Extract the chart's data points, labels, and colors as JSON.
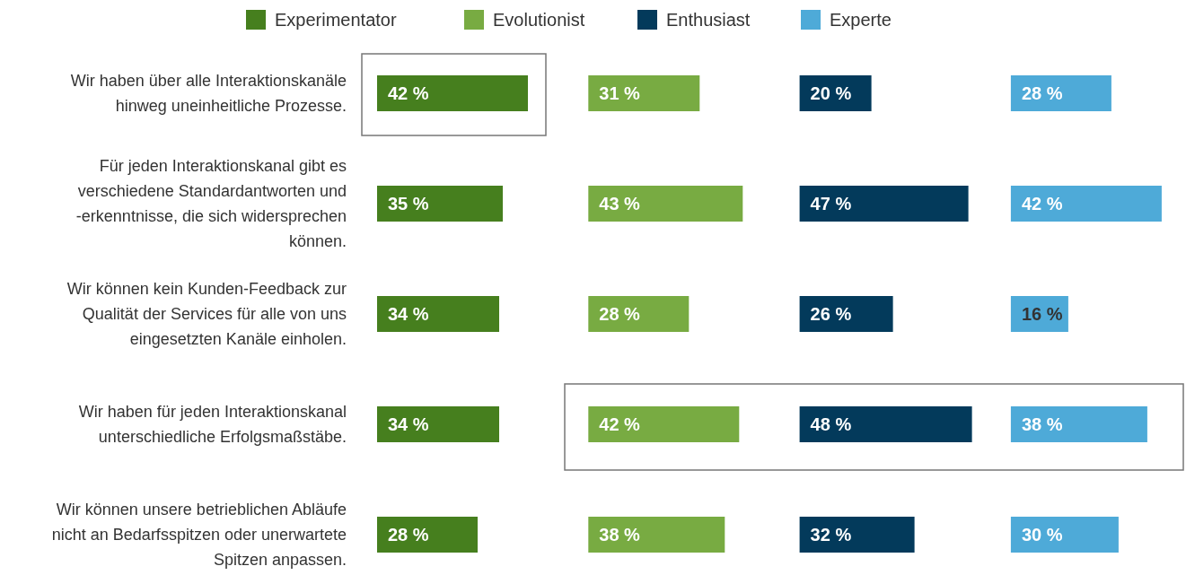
{
  "chart_data": [
    {
      "type": "bar",
      "orientation": "horizontal",
      "legend": "top",
      "categories": [
        "Wir haben über alle Interaktionskanäle hinweg uneinheitliche Prozesse.",
        "Für jeden Interaktionskanal gibt es verschiedene Standardantworten und -erkenntnisse, die sich widersprechen können.",
        "Wir können kein Kunden-Feedback zur Qualität der Services für alle von uns eingesetzten Kanäle einholen.",
        "Wir haben für jeden Interaktionskanal unterschiedliche Erfolgsmaßstäbe.",
        "Wir können unsere betrieblichen Abläufe nicht an Bedarfsspitzen oder unerwartete Spitzen anpassen."
      ],
      "series": [
        {
          "name": "Experimentator",
          "color": "#467f1e",
          "values": [
            42,
            35,
            34,
            34,
            28
          ],
          "value_labels": [
            "42 %",
            "35 %",
            "34 %",
            "34 %",
            "28 %"
          ]
        }
      ]
    },
    {
      "type": "bar",
      "orientation": "horizontal",
      "legend": "top",
      "categories": [
        null,
        null,
        null,
        null,
        null
      ],
      "series": [
        {
          "name": "Evolutionist",
          "color": "#78ab42",
          "values": [
            31,
            43,
            28,
            42,
            38
          ],
          "value_labels": [
            "31 %",
            "43 %",
            "28 %",
            "42 %",
            "38 %"
          ]
        }
      ]
    },
    {
      "type": "bar",
      "orientation": "horizontal",
      "legend": "top",
      "categories": [
        null,
        null,
        null,
        null,
        null
      ],
      "series": [
        {
          "name": "Enthusiast",
          "color": "#033a5b",
          "values": [
            20,
            47,
            26,
            48,
            32
          ],
          "value_labels": [
            "20 %",
            "47 %",
            "26 %",
            "48 %",
            "32 %"
          ]
        }
      ]
    },
    {
      "type": "bar",
      "orientation": "horizontal",
      "legend": "top",
      "categories": [
        null,
        null,
        null,
        null,
        null
      ],
      "series": [
        {
          "name": "Experte",
          "color": "#4eaad8",
          "values": [
            28,
            42,
            16,
            38,
            30
          ],
          "value_labels": [
            "28 %",
            "42 %",
            "16 %",
            "38 %",
            "30 %"
          ]
        }
      ]
    }
  ]
}
